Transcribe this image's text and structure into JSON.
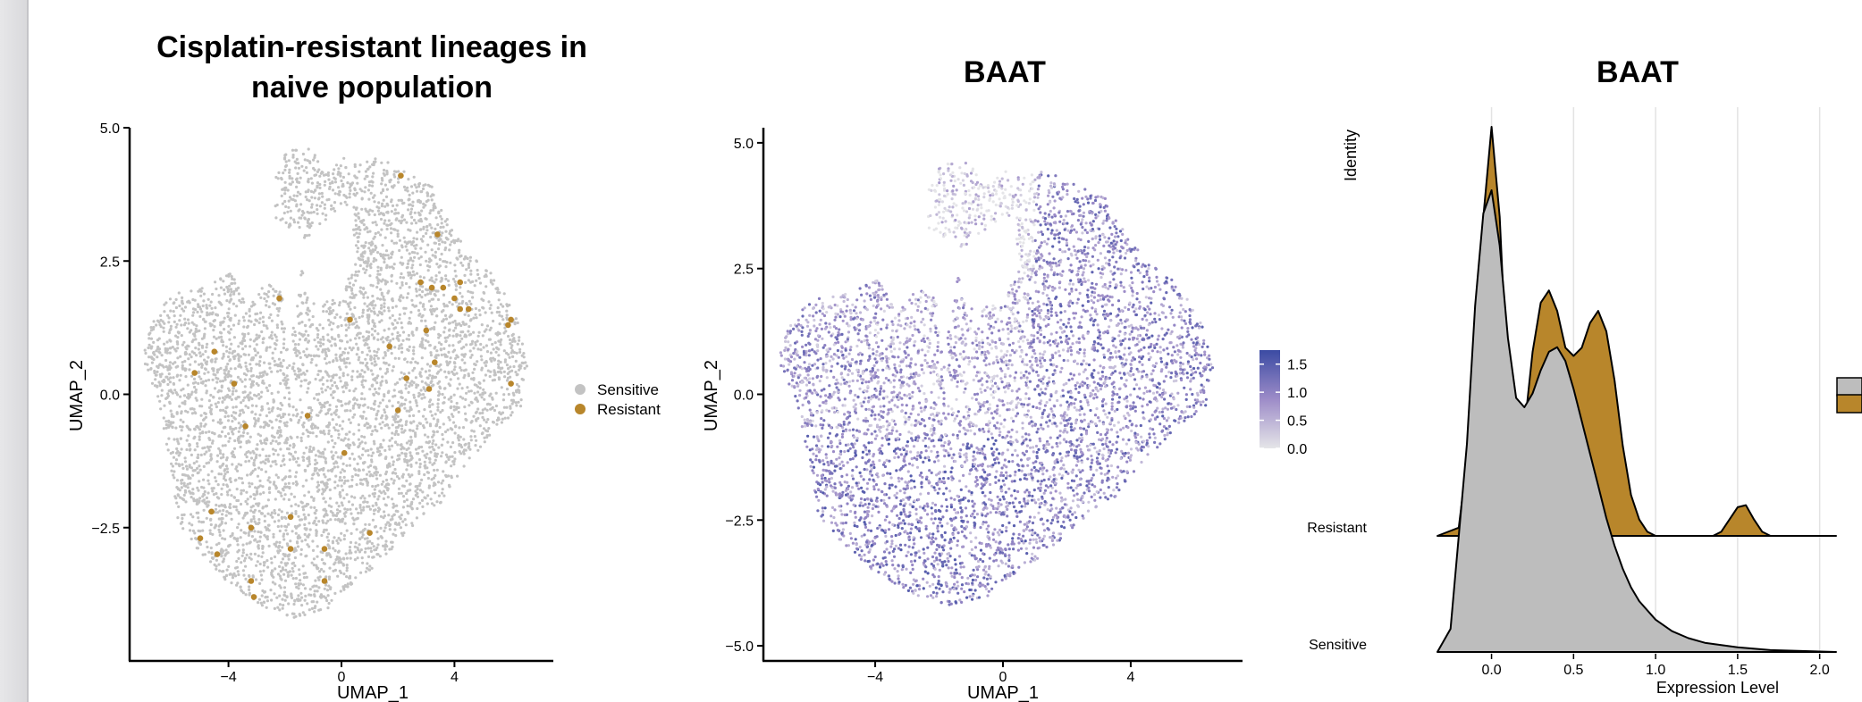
{
  "chart_data": [
    {
      "type": "scatter",
      "title_line1": "Cisplatin-resistant lineages in",
      "title_line2": "naive population",
      "xlabel": "UMAP_1",
      "ylabel": "UMAP_2",
      "xlim": [
        -7.5,
        7.5
      ],
      "ylim": [
        -5.0,
        5.0
      ],
      "xticks": [
        -4,
        0,
        4
      ],
      "yticks": [
        5.0,
        2.5,
        0.0,
        -2.5
      ],
      "legend": {
        "placement": "right",
        "entries": [
          {
            "name": "Sensitive",
            "color": "#c3c3c3"
          },
          {
            "name": "Resistant",
            "color": "#b8862b"
          }
        ]
      },
      "resistant_points": [
        [
          2.1,
          4.1
        ],
        [
          3.4,
          3.0
        ],
        [
          -2.2,
          1.8
        ],
        [
          2.8,
          2.1
        ],
        [
          3.2,
          2.0
        ],
        [
          4.2,
          2.1
        ],
        [
          4.0,
          1.8
        ],
        [
          3.6,
          2.0
        ],
        [
          4.2,
          1.6
        ],
        [
          4.5,
          1.6
        ],
        [
          5.9,
          1.3
        ],
        [
          6.0,
          1.4
        ],
        [
          0.3,
          1.4
        ],
        [
          3.0,
          1.2
        ],
        [
          -4.5,
          0.8
        ],
        [
          1.7,
          0.9
        ],
        [
          3.3,
          0.6
        ],
        [
          -5.2,
          0.4
        ],
        [
          -3.8,
          0.2
        ],
        [
          2.3,
          0.3
        ],
        [
          3.1,
          0.1
        ],
        [
          6.0,
          0.2
        ],
        [
          -1.2,
          -0.4
        ],
        [
          2.0,
          -0.3
        ],
        [
          -3.4,
          -0.6
        ],
        [
          0.1,
          -1.1
        ],
        [
          -4.6,
          -2.2
        ],
        [
          -3.2,
          -2.5
        ],
        [
          -1.8,
          -2.3
        ],
        [
          -5.0,
          -2.7
        ],
        [
          -4.4,
          -3.0
        ],
        [
          1.0,
          -2.6
        ],
        [
          -1.8,
          -2.9
        ],
        [
          -0.6,
          -2.9
        ],
        [
          -3.2,
          -3.5
        ],
        [
          -3.1,
          -3.8
        ],
        [
          -0.6,
          -3.5
        ]
      ]
    },
    {
      "type": "scatter",
      "title": "BAAT",
      "xlabel": "UMAP_1",
      "ylabel": "UMAP_2",
      "xlim": [
        -7.5,
        7.5
      ],
      "ylim": [
        -5.3,
        5.3
      ],
      "xticks": [
        -4,
        0,
        4
      ],
      "yticks": [
        5.0,
        2.5,
        0.0,
        -2.5,
        -5.0
      ],
      "colorbar": {
        "ticks": [
          1.5,
          1.0,
          0.5,
          0.0
        ],
        "range": [
          0,
          1.75
        ],
        "low_color": "#e5e5e8",
        "high_color": "#3b4ba3"
      }
    },
    {
      "type": "area",
      "title": "BAAT",
      "xlabel": "Expression Level",
      "ylabel": "Identity",
      "xlim": [
        -0.33,
        2.1
      ],
      "xticks": [
        0.0,
        0.5,
        1.0,
        1.5,
        2.0
      ],
      "categories": [
        "Resistant",
        "Sensitive"
      ],
      "series": [
        {
          "name": "Resistant",
          "color": "#b8862b",
          "x": [
            -0.33,
            -0.2,
            -0.1,
            -0.05,
            0.0,
            0.05,
            0.1,
            0.15,
            0.2,
            0.25,
            0.3,
            0.35,
            0.4,
            0.45,
            0.5,
            0.55,
            0.6,
            0.65,
            0.7,
            0.75,
            0.8,
            0.85,
            0.9,
            0.95,
            1.0,
            1.05,
            1.1,
            1.15,
            1.2,
            1.25,
            1.3,
            1.35,
            1.4,
            1.45,
            1.5,
            1.55,
            1.6,
            1.65,
            1.7,
            1.8,
            2.1
          ],
          "y": [
            0,
            0.02,
            0.35,
            0.78,
            1.0,
            0.78,
            0.35,
            0.18,
            0.26,
            0.45,
            0.57,
            0.6,
            0.55,
            0.46,
            0.44,
            0.46,
            0.52,
            0.55,
            0.5,
            0.38,
            0.22,
            0.1,
            0.04,
            0.01,
            0.0,
            0.0,
            0.0,
            0.0,
            0.0,
            0.0,
            0.0,
            0.0,
            0.01,
            0.04,
            0.07,
            0.075,
            0.04,
            0.01,
            0.0,
            0.0,
            0.0
          ]
        },
        {
          "name": "Sensitive",
          "color": "#bdbdbd",
          "x": [
            -0.33,
            -0.25,
            -0.15,
            -0.1,
            -0.05,
            0.0,
            0.05,
            0.1,
            0.15,
            0.2,
            0.25,
            0.3,
            0.35,
            0.4,
            0.45,
            0.5,
            0.55,
            0.6,
            0.65,
            0.7,
            0.75,
            0.8,
            0.85,
            0.9,
            1.0,
            1.1,
            1.2,
            1.3,
            1.5,
            1.7,
            2.1
          ],
          "y": [
            0,
            0.05,
            0.45,
            0.75,
            0.95,
            1.0,
            0.88,
            0.68,
            0.55,
            0.53,
            0.56,
            0.61,
            0.65,
            0.66,
            0.63,
            0.57,
            0.5,
            0.43,
            0.36,
            0.29,
            0.23,
            0.18,
            0.14,
            0.11,
            0.07,
            0.045,
            0.03,
            0.02,
            0.01,
            0.004,
            0.0
          ]
        }
      ],
      "legend": {
        "placement": "right",
        "entries": [
          {
            "name": "Sensitive",
            "color": "#bdbdbd"
          },
          {
            "name": "Resistant",
            "color": "#b8862b"
          }
        ]
      }
    }
  ]
}
